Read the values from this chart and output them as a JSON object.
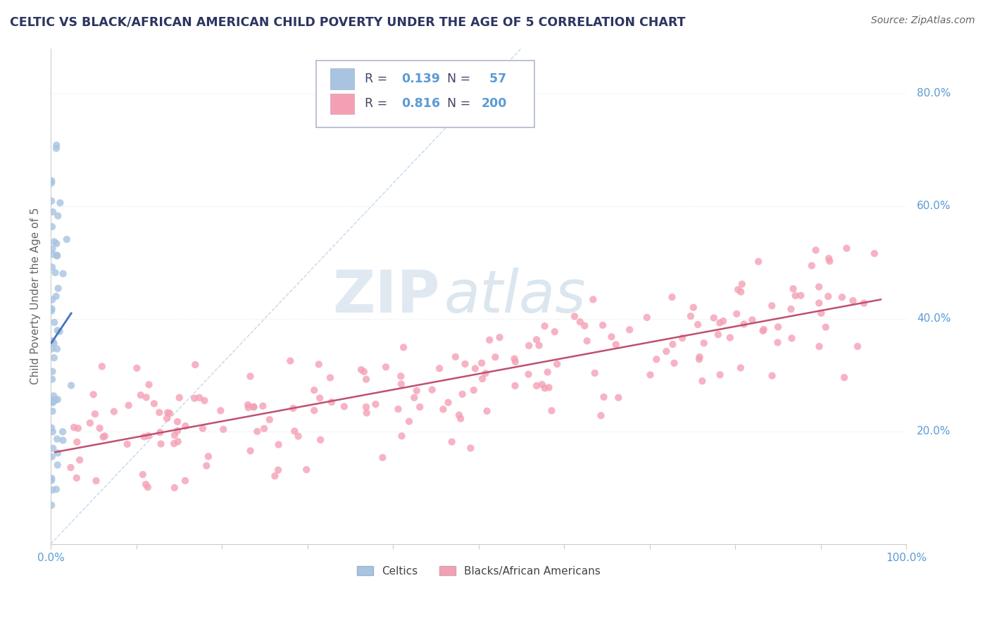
{
  "title": "CELTIC VS BLACK/AFRICAN AMERICAN CHILD POVERTY UNDER THE AGE OF 5 CORRELATION CHART",
  "source_text": "Source: ZipAtlas.com",
  "ylabel": "Child Poverty Under the Age of 5",
  "r_celtic": 0.139,
  "n_celtic": 57,
  "r_black": 0.816,
  "n_black": 200,
  "legend_labels": [
    "Celtics",
    "Blacks/African Americans"
  ],
  "celtic_color": "#a8c4e0",
  "black_color": "#f4a0b4",
  "celtic_line_color": "#4472c4",
  "black_line_color": "#c05070",
  "dashed_line_color": "#c0d4e8",
  "title_color": "#2d3561",
  "source_color": "#666666",
  "axis_label_color": "#5b9bd5",
  "background_color": "#ffffff",
  "grid_color": "#e0e8f0",
  "xlim": [
    0.0,
    1.0
  ],
  "ylim": [
    0.0,
    0.88
  ],
  "x_ticks": [
    0.0,
    0.1,
    0.2,
    0.3,
    0.4,
    0.5,
    0.6,
    0.7,
    0.8,
    0.9,
    1.0
  ],
  "y_right_labels": [
    [
      0.2,
      "20.0%"
    ],
    [
      0.4,
      "40.0%"
    ],
    [
      0.6,
      "60.0%"
    ],
    [
      0.8,
      "80.0%"
    ]
  ],
  "watermark_zip_color": "#c8d8e8",
  "watermark_atlas_color": "#b0c8dc"
}
